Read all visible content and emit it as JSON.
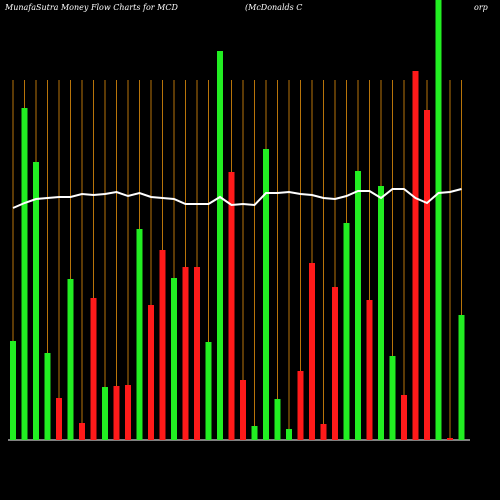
{
  "chart_data": {
    "type": "bar",
    "title": "MunafaSutra  Money Flow  Charts for MCD",
    "subtitle": [
      "(McDonalds C",
      "orp"
    ],
    "values": [
      99,
      332,
      278,
      87,
      42,
      161,
      17,
      142,
      53,
      54,
      55,
      211,
      135,
      190,
      162,
      173,
      173,
      98,
      389,
      268,
      60,
      14,
      291,
      41,
      11,
      69,
      177,
      16,
      153,
      217,
      269,
      140,
      254,
      84,
      45,
      369,
      330,
      440,
      2,
      125
    ],
    "colors": [
      "#22ee22",
      "#22ee22",
      "#22ee22",
      "#22ee22",
      "#ff1a1a",
      "#22ee22",
      "#ff1a1a",
      "#ff1a1a",
      "#22ee22",
      "#ff1a1a",
      "#ff1a1a",
      "#22ee22",
      "#ff1a1a",
      "#ff1a1a",
      "#22ee22",
      "#ff1a1a",
      "#ff1a1a",
      "#22ee22",
      "#22ee22",
      "#ff1a1a",
      "#ff1a1a",
      "#22ee22",
      "#22ee22",
      "#22ee22",
      "#22ee22",
      "#ff1a1a",
      "#ff1a1a",
      "#ff1a1a",
      "#ff1a1a",
      "#22ee22",
      "#22ee22",
      "#ff1a1a",
      "#22ee22",
      "#22ee22",
      "#ff1a1a",
      "#ff1a1a",
      "#ff1a1a",
      "#22ee22",
      "#ff1a1a",
      "#22ee22"
    ],
    "line": {
      "color": "#ffffff",
      "values": [
        232,
        237,
        241,
        242,
        243,
        243,
        246,
        245,
        246,
        248,
        244,
        247,
        243,
        242,
        241,
        236,
        236,
        236,
        243,
        235,
        236,
        235,
        247,
        247,
        248,
        246,
        245,
        242,
        241,
        244,
        249,
        249,
        242,
        251,
        251,
        242,
        237,
        247,
        248,
        251
      ]
    },
    "ylim": [
      0,
      440
    ],
    "grid": true
  }
}
